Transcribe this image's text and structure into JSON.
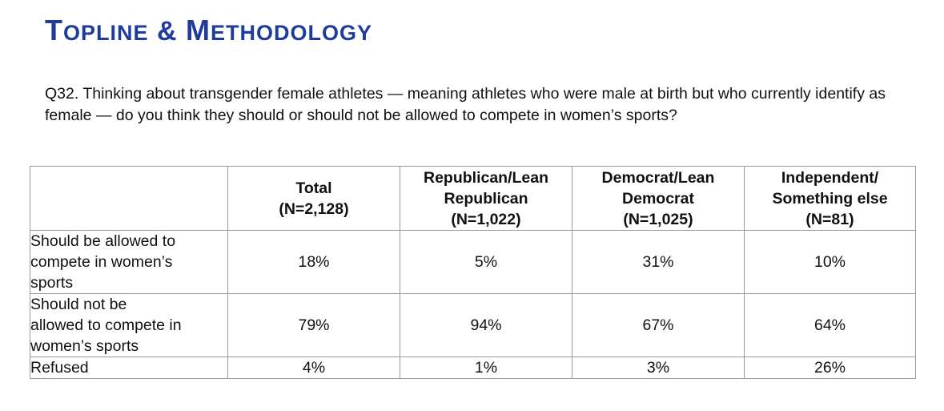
{
  "header": {
    "title_t": "T",
    "title_opline": "OPLINE",
    "title_amp": " & ",
    "title_m": "M",
    "title_ethodology": "ETHODOLOGY"
  },
  "question": {
    "text": "Q32. Thinking about transgender female athletes — meaning athletes who were male at birth but who currently identify as female — do you think they should or should not be allowed to compete in women’s sports?"
  },
  "table": {
    "columns": [
      {
        "lines": [
          "Total",
          "(N=2,128)"
        ]
      },
      {
        "lines": [
          "Republican/Lean",
          "Republican",
          "(N=1,022)"
        ]
      },
      {
        "lines": [
          "Democrat/Lean",
          "Democrat",
          "(N=1,025)"
        ]
      },
      {
        "lines": [
          "Independent/",
          "Something else",
          "(N=81)"
        ]
      }
    ],
    "rows": [
      {
        "label_lines": [
          "Should be allowed to",
          "compete in women’s",
          "sports"
        ],
        "values": [
          "18%",
          "5%",
          "31%",
          "10%"
        ]
      },
      {
        "label_lines": [
          "Should not be",
          "allowed to compete in",
          "women’s sports"
        ],
        "values": [
          "79%",
          "94%",
          "67%",
          "64%"
        ]
      },
      {
        "label_lines": [
          "Refused"
        ],
        "values": [
          "4%",
          "1%",
          "3%",
          "26%"
        ]
      }
    ]
  },
  "colors": {
    "title": "#1f3b9c",
    "text": "#111111",
    "border": "#9a9a9a"
  }
}
